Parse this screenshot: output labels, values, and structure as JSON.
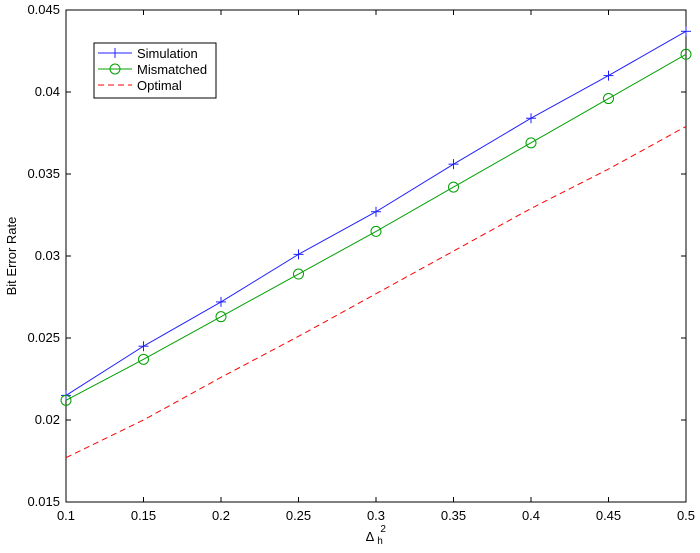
{
  "chart_data": {
    "type": "line",
    "title": "",
    "xlabel_base": "Δ",
    "xlabel_sup": "2",
    "xlabel_sub": "h",
    "ylabel": "Bit Error Rate",
    "xlim": [
      0.1,
      0.5
    ],
    "ylim": [
      0.015,
      0.045
    ],
    "x_ticks": [
      "0.1",
      "0.15",
      "0.2",
      "0.25",
      "0.3",
      "0.35",
      "0.4",
      "0.45",
      "0.5"
    ],
    "y_ticks": [
      "0.015",
      "0.02",
      "0.025",
      "0.03",
      "0.035",
      "0.04",
      "0.045"
    ],
    "grid": false,
    "legend_position": "top-left",
    "x": [
      0.1,
      0.15,
      0.2,
      0.25,
      0.3,
      0.35,
      0.4,
      0.45,
      0.5
    ],
    "series": [
      {
        "name": "Simulation",
        "color": "#2020ff",
        "marker": "plus",
        "line": "solid",
        "values": [
          0.0215,
          0.0245,
          0.0272,
          0.0301,
          0.0327,
          0.0356,
          0.0384,
          0.041,
          0.0437
        ]
      },
      {
        "name": "Mismatched",
        "color": "#00a000",
        "marker": "circle",
        "line": "solid",
        "values": [
          0.0212,
          0.0237,
          0.0263,
          0.0289,
          0.0315,
          0.0342,
          0.0369,
          0.0396,
          0.0423
        ]
      },
      {
        "name": "Optimal",
        "color": "#ff0000",
        "marker": "none",
        "line": "dashed",
        "values": [
          0.0177,
          0.02,
          0.0226,
          0.0251,
          0.0277,
          0.0303,
          0.0329,
          0.0353,
          0.0379
        ]
      }
    ]
  }
}
